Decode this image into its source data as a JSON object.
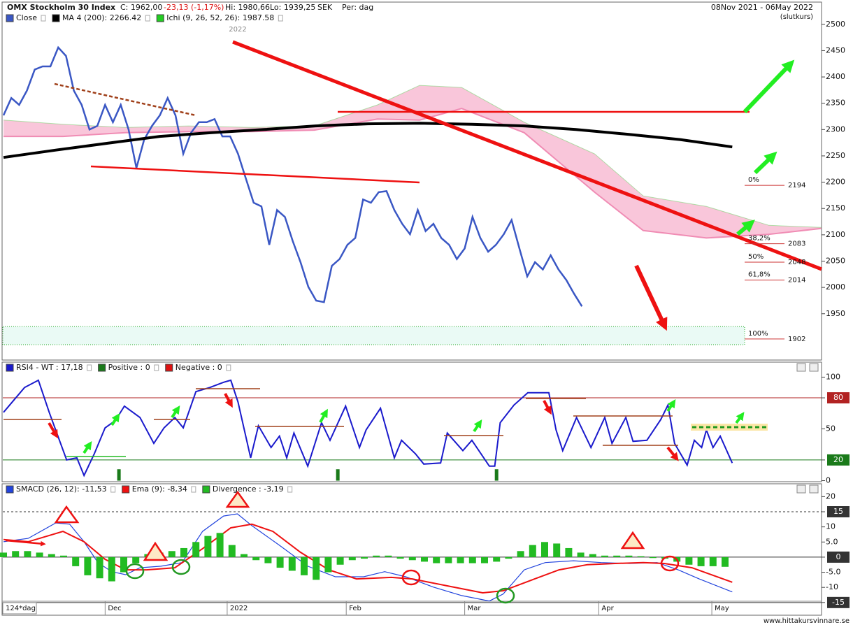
{
  "chart_data": [
    {
      "type": "ichimoku",
      "title": "OMX Stockholm 30 Index",
      "close_text": "C: 1962,00",
      "change_text": "-23,13 (-1,17%)",
      "high_text": "Hi: 1980,66",
      "low_text": "Lo: 1939,25",
      "currency": "SEK",
      "period": "Per: dag",
      "date_range": "08Nov 2021 - 06May 2022",
      "price_type": "(slutkurs)",
      "year_marker": "2022",
      "ylim": [
        1866,
        2517
      ],
      "yticks": [
        1950,
        2000,
        2050,
        2100,
        2150,
        2200,
        2250,
        2300,
        2350,
        2400,
        2450,
        2500
      ],
      "series": [
        {
          "name": "Close",
          "color": "#3a57c4",
          "x": [
            0,
            1.3,
            2.6,
            3.9,
            5.2,
            6.5,
            7.8,
            9.1,
            10.4,
            11.7,
            13,
            14.3,
            15.6,
            16.9,
            18.2,
            19.5,
            20.8,
            22.1,
            23.4,
            24.7,
            26,
            27.3,
            28.6,
            29.9,
            31.2,
            32.5,
            33.8,
            35.1,
            36.4,
            37.7,
            39,
            40.3,
            41.6,
            42.9,
            44.2,
            45.5,
            46.8,
            48.1,
            49.4,
            50.7,
            52,
            53.3,
            54.6,
            55.9,
            57.2,
            58.5,
            59.8,
            61.1,
            62.4,
            63.7,
            65,
            66.3,
            67.6,
            68.9,
            70.2,
            71.5,
            72.8,
            74.1,
            75.4,
            76.7,
            78,
            79.3,
            80.6,
            81.9,
            83.2,
            84.5,
            85.8,
            87.1,
            88.4,
            89.7,
            91,
            92.3,
            93.6,
            94.9,
            96.2
          ],
          "values": [
            2327,
            2360,
            2347,
            2374,
            2414,
            2420,
            2420,
            2456,
            2440,
            2374,
            2347,
            2300,
            2307,
            2347,
            2314,
            2347,
            2300,
            2227,
            2281,
            2307,
            2327,
            2360,
            2327,
            2254,
            2294,
            2314,
            2314,
            2320,
            2287,
            2287,
            2254,
            2207,
            2161,
            2154,
            2081,
            2147,
            2134,
            2088,
            2048,
            2001,
            1975,
            1972,
            2041,
            2054,
            2081,
            2094,
            2167,
            2161,
            2181,
            2183,
            2147,
            2121,
            2101,
            2147,
            2107,
            2121,
            2094,
            2081,
            2054,
            2074,
            2134,
            2094,
            2068,
            2081,
            2101,
            2128,
            2074,
            2021,
            2048,
            2034,
            2061,
            2034,
            2014,
            1988,
            1964
          ]
        },
        {
          "name": "MA 4 (200): 2266.42",
          "color": "#000000",
          "x": [
            0,
            8.7,
            17.3,
            26,
            34.6,
            43.3,
            51.9,
            60.6,
            69.3,
            77.9,
            86.6,
            95.2,
            103.9,
            112.5,
            121.2
          ],
          "values": [
            2247,
            2261,
            2274,
            2287,
            2294,
            2300,
            2307,
            2311,
            2312,
            2310,
            2307,
            2300,
            2291,
            2281,
            2267
          ]
        }
      ],
      "ichi": {
        "name": "Ichi (9, 26, 52, 26): 1987.58",
        "color": "#22cc22",
        "cloud_color": "#f9c6da",
        "x": [
          0,
          9.9,
          20.3,
          30.8,
          41.3,
          51.7,
          62.2,
          69.2,
          76.2,
          86.6,
          98.3,
          106.4,
          116.9,
          127.3,
          136
        ],
        "upper": [
          2318,
          2310,
          2304,
          2307,
          2304,
          2307,
          2347,
          2384,
          2380,
          2314,
          2254,
          2174,
          2154,
          2118,
          2114
        ],
        "lower": [
          2287,
          2287,
          2294,
          2296,
          2296,
          2299,
          2320,
          2318,
          2340,
          2294,
          2181,
          2108,
          2094,
          2101,
          2112
        ]
      },
      "fib": [
        {
          "label": "0%",
          "value": 2194
        },
        {
          "label": "38,2%",
          "value": 2083
        },
        {
          "label": "50%",
          "value": 2048
        },
        {
          "label": "61,8%",
          "value": 2014
        },
        {
          "label": "100%",
          "value": 1902
        }
      ]
    },
    {
      "type": "oscillator",
      "ylim": [
        -1,
        103
      ],
      "yticks": [
        0,
        20,
        50,
        80,
        100
      ],
      "hlines": [
        {
          "value": 80,
          "color": "#b22222",
          "dash": false
        },
        {
          "value": 20,
          "color": "#1a7a1a",
          "dash": false
        }
      ],
      "series": [
        {
          "name": "RSI4 - WT : 17,18",
          "color": "#1a1acc",
          "kind": "line",
          "x": [
            0,
            3.5,
            5.8,
            7.6,
            10.5,
            12.2,
            13.4,
            15.1,
            16.9,
            18.6,
            20.1,
            22.7,
            25,
            26.7,
            28.5,
            29.9,
            32,
            34.3,
            36.6,
            37.8,
            39,
            41.1,
            42.4,
            44.5,
            45.9,
            47.1,
            48.3,
            50.6,
            52.9,
            54.3,
            56.9,
            59.2,
            60.3,
            62.7,
            65,
            66.2,
            68.5,
            69.9,
            72.7,
            73.8,
            76.4,
            77.9,
            80.8,
            81.7,
            82.6,
            84.9,
            87.2,
            90.7,
            91.9,
            93,
            95.3,
            97.7,
            100,
            101.2,
            103.5,
            104.7,
            107,
            109.3,
            110.5,
            111.6,
            113.7,
            114.9,
            116.1,
            116.9,
            118,
            119.2,
            121.2
          ],
          "values": [
            66,
            90,
            97,
            66,
            20,
            22,
            5,
            26,
            51,
            58,
            72,
            61,
            36,
            51,
            61,
            51,
            86,
            90,
            95,
            97,
            76,
            22,
            53,
            32,
            43,
            22,
            46,
            14,
            56,
            39,
            72,
            32,
            49,
            70,
            22,
            39,
            26,
            16,
            17,
            46,
            29,
            39,
            14,
            14,
            56,
            73,
            85,
            85,
            49,
            29,
            61,
            32,
            61,
            36,
            61,
            38,
            39,
            59,
            73,
            36,
            15,
            39,
            32,
            49,
            32,
            43,
            17
          ]
        },
        {
          "name": "Positive : 0",
          "color": "#1a7a1a",
          "kind": "bar",
          "x": [
            19.2,
            55.6,
            82.0
          ],
          "values": [
            11,
            11,
            11
          ]
        },
        {
          "name": "Negative : 0",
          "color": "#dd1111",
          "kind": "bar",
          "x": [],
          "values": []
        }
      ]
    },
    {
      "type": "oscillator",
      "ylim": [
        -19.2,
        22.4
      ],
      "yticks": [
        {
          "value": -15,
          "label": "-15"
        },
        -10,
        {
          "value": -5,
          "label": "-5.0"
        },
        0,
        {
          "value": 5,
          "label": "5.0"
        },
        10,
        15,
        20
      ],
      "hlines": [
        {
          "value": 15,
          "color": "#333333",
          "dash": true
        },
        {
          "value": 0,
          "color": "#333333",
          "dash": false
        },
        {
          "value": -15,
          "color": "#333333",
          "dash": false
        }
      ],
      "series": [
        {
          "name": "SMACD (26, 12): -11,53",
          "color": "#2244dd",
          "kind": "line",
          "x": [
            0,
            4.1,
            8.7,
            11,
            13.4,
            15.7,
            18,
            20.3,
            22.7,
            26.2,
            29.7,
            33.1,
            36.6,
            38.9,
            41.3,
            45.9,
            50.6,
            55.2,
            59.9,
            63.4,
            66.9,
            71.5,
            76.2,
            80.8,
            83.1,
            86.6,
            90.1,
            94.8,
            99.4,
            104.1,
            108.7,
            112.2,
            115.7,
            121.2
          ],
          "values": [
            5.1,
            6.2,
            11.3,
            10.9,
            5.1,
            -1.8,
            -4.8,
            -5.8,
            -3.5,
            -3.0,
            -1.8,
            8.5,
            13.6,
            14.3,
            10.4,
            3.9,
            -3.0,
            -6.5,
            -6.5,
            -4.8,
            -6.5,
            -9.9,
            -12.7,
            -14.5,
            -12.2,
            -4.2,
            -1.8,
            -1.2,
            -1.8,
            -2.1,
            -1.8,
            -4.2,
            -7.2,
            -11.5
          ]
        },
        {
          "name": "Ema (9): -8,34",
          "color": "#ee1111",
          "kind": "line",
          "x": [
            0,
            4.1,
            9.9,
            13.4,
            16.9,
            20.3,
            23.8,
            28.5,
            33.1,
            37.8,
            41.3,
            44.8,
            49.4,
            54.1,
            58.7,
            64.5,
            68,
            73.8,
            79.7,
            83.1,
            87.8,
            92.4,
            97.1,
            101.7,
            106.4,
            109.9,
            114.5,
            121.2
          ],
          "values": [
            5.8,
            5.1,
            8.5,
            5.1,
            -0.7,
            -4.2,
            -4.2,
            -3.5,
            2.8,
            9.7,
            10.9,
            8.5,
            1.6,
            -4.2,
            -7.2,
            -6.7,
            -7.2,
            -9.5,
            -11.8,
            -11.1,
            -7.6,
            -4.2,
            -2.5,
            -2.1,
            -1.8,
            -2.1,
            -3.5,
            -8.3
          ]
        },
        {
          "name": "Divergence : -3,19",
          "color": "#22bb22",
          "kind": "bar",
          "x": [
            0,
            2,
            4,
            6,
            8,
            10,
            12,
            14,
            16,
            18,
            20,
            22,
            24,
            26,
            28,
            30,
            32,
            34,
            36,
            38,
            40,
            42,
            44,
            46,
            48,
            50,
            52,
            54,
            56,
            58,
            60,
            62,
            64,
            66,
            68,
            70,
            72,
            74,
            76,
            78,
            80,
            82,
            84,
            86,
            88,
            90,
            92,
            94,
            96,
            98,
            100,
            102,
            104,
            106,
            108,
            110,
            112,
            114,
            116,
            118,
            120
          ],
          "values": [
            1.5,
            2,
            2,
            1.5,
            1,
            0.5,
            -3,
            -6,
            -7,
            -8,
            -5,
            -2,
            1,
            1.5,
            2,
            3,
            5,
            7,
            8,
            4,
            1,
            -1,
            -2,
            -3.5,
            -4.5,
            -6,
            -7.5,
            -5,
            -2.5,
            -1,
            -0.5,
            0.5,
            0.5,
            -0.5,
            -1,
            -1.5,
            -2,
            -2,
            -2,
            -2,
            -2,
            -1.5,
            -0.5,
            2,
            4,
            5,
            4.5,
            3,
            1.5,
            1,
            0.5,
            0.5,
            0.5,
            0.3,
            -0.3,
            -0.5,
            -1.5,
            -2.5,
            -3,
            -3,
            -3.2
          ]
        }
      ]
    }
  ],
  "x_axis": {
    "period_label": "124*dag",
    "xlim": [
      0,
      136
    ],
    "xticks": [
      {
        "value": 16.9,
        "label": "Dec"
      },
      {
        "value": 37.2,
        "label": "2022"
      },
      {
        "value": 57,
        "label": "Feb"
      },
      {
        "value": 76.7,
        "label": "Mar"
      },
      {
        "value": 99,
        "label": "Apr"
      },
      {
        "value": 117.8,
        "label": "May"
      }
    ]
  },
  "footer": "www.hittakursvinnare.se"
}
